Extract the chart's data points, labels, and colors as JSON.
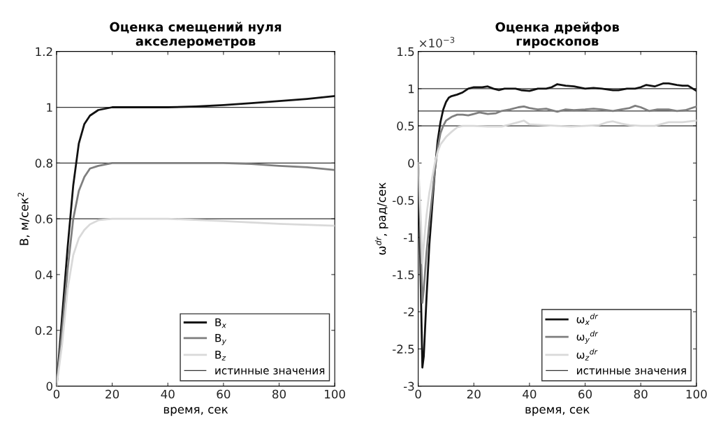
{
  "chart_data": [
    {
      "type": "line",
      "title": "Оценка смещений нуля\nакселерометров",
      "xlabel": "время, сек",
      "ylabel": "B, м/сек$^{2}$",
      "xlim": [
        0,
        100
      ],
      "xticks": [
        0,
        20,
        40,
        60,
        80,
        100
      ],
      "ylim": [
        0,
        1.2
      ],
      "yticks": [
        0,
        0.2,
        0.4,
        0.6,
        0.8,
        1,
        1.2
      ],
      "grid": false,
      "legend": "bottom right",
      "series": [
        {
          "name": "B$_{x}$",
          "color": "#111111",
          "x": [
            0,
            2,
            4,
            6,
            8,
            10,
            12,
            15,
            20,
            30,
            40,
            50,
            60,
            70,
            80,
            90,
            100
          ],
          "values": [
            0.0,
            0.25,
            0.5,
            0.72,
            0.87,
            0.94,
            0.97,
            0.99,
            1.0,
            1.0,
            1.0,
            1.003,
            1.008,
            1.015,
            1.022,
            1.03,
            1.04
          ]
        },
        {
          "name": "B$_{y}$",
          "color": "#7f7f7f",
          "x": [
            0,
            2,
            4,
            6,
            8,
            10,
            12,
            15,
            20,
            40,
            60,
            70,
            80,
            90,
            100
          ],
          "values": [
            0.0,
            0.2,
            0.42,
            0.6,
            0.7,
            0.75,
            0.78,
            0.79,
            0.8,
            0.8,
            0.8,
            0.797,
            0.79,
            0.785,
            0.775
          ]
        },
        {
          "name": "B$_{z}$",
          "color": "#d9d9d9",
          "x": [
            0,
            2,
            4,
            6,
            8,
            10,
            12,
            15,
            20,
            40,
            60,
            80,
            100
          ],
          "values": [
            0.0,
            0.15,
            0.35,
            0.47,
            0.53,
            0.56,
            0.58,
            0.595,
            0.6,
            0.6,
            0.592,
            0.582,
            0.575
          ]
        }
      ],
      "ref_lines": [
        {
          "axis": "y",
          "value": 1,
          "label": "истинные значения",
          "color": "#333333"
        },
        {
          "axis": "y",
          "value": 0.8,
          "color": "#333333"
        },
        {
          "axis": "y",
          "value": 0.6,
          "color": "#333333"
        }
      ]
    },
    {
      "type": "line",
      "title": "Оценка дрейфов\nгироскопов",
      "xlabel": "время, сек",
      "ylabel": "ω$^{dr}$, рад/сек",
      "annotations": [
        "×10$^{−3}$"
      ],
      "xlim": [
        0,
        100
      ],
      "xticks": [
        0,
        20,
        40,
        60,
        80,
        100
      ],
      "ylim": [
        -3,
        1.5
      ],
      "yticks": [
        -3,
        -2.5,
        -2,
        -1.5,
        -1,
        -0.5,
        0,
        0.5,
        1,
        1.5
      ],
      "grid": false,
      "legend": "bottom right",
      "series": [
        {
          "name": "ω$_{x}$$^{dr}$",
          "color": "#111111",
          "x": [
            0,
            1,
            1.5,
            2,
            3,
            4,
            5,
            6,
            7,
            8,
            9,
            10,
            11,
            12,
            14,
            16,
            18,
            20,
            23,
            25,
            27,
            29,
            31,
            33,
            35,
            37,
            40,
            43,
            46,
            48,
            50,
            53,
            56,
            60,
            63,
            66,
            70,
            72,
            75,
            78,
            80,
            82,
            85,
            88,
            90,
            93,
            95,
            97,
            100
          ],
          "values": [
            0,
            -1.8,
            -2.75,
            -2.6,
            -1.8,
            -1.1,
            -0.6,
            -0.1,
            0.3,
            0.55,
            0.72,
            0.82,
            0.88,
            0.9,
            0.92,
            0.95,
            1.0,
            1.02,
            1.02,
            1.03,
            1.0,
            0.98,
            1.0,
            1.0,
            1.0,
            0.98,
            0.97,
            1.0,
            1.0,
            1.02,
            1.06,
            1.04,
            1.03,
            1.0,
            1.01,
            1.0,
            0.98,
            0.98,
            1.0,
            1.0,
            1.02,
            1.05,
            1.03,
            1.07,
            1.07,
            1.05,
            1.04,
            1.04,
            0.97
          ]
        },
        {
          "name": "ω$_{y}$$^{dr}$",
          "color": "#7f7f7f",
          "x": [
            0,
            1,
            1.5,
            2,
            3,
            4,
            5,
            6,
            7,
            8,
            9,
            10,
            12,
            14,
            16,
            18,
            20,
            22,
            25,
            28,
            30,
            33,
            36,
            38,
            40,
            43,
            46,
            50,
            53,
            56,
            60,
            63,
            66,
            70,
            73,
            76,
            78,
            80,
            83,
            86,
            90,
            93,
            96,
            100
          ],
          "values": [
            0,
            -1.2,
            -1.88,
            -1.7,
            -1.2,
            -0.8,
            -0.45,
            -0.1,
            0.2,
            0.4,
            0.5,
            0.57,
            0.62,
            0.65,
            0.65,
            0.64,
            0.66,
            0.68,
            0.66,
            0.67,
            0.7,
            0.72,
            0.75,
            0.76,
            0.74,
            0.72,
            0.73,
            0.69,
            0.72,
            0.71,
            0.72,
            0.73,
            0.72,
            0.7,
            0.72,
            0.74,
            0.77,
            0.75,
            0.7,
            0.72,
            0.72,
            0.7,
            0.71,
            0.76
          ]
        },
        {
          "name": "ω$_{z}$$^{dr}$",
          "color": "#d9d9d9",
          "x": [
            0,
            1,
            1.5,
            2,
            3,
            4,
            5,
            6,
            7,
            8,
            10,
            12,
            14,
            16,
            20,
            25,
            30,
            33,
            36,
            38,
            40,
            45,
            50,
            55,
            60,
            65,
            68,
            70,
            73,
            76,
            80,
            85,
            90,
            95,
            100
          ],
          "values": [
            0,
            -0.8,
            -1.35,
            -1.1,
            -0.7,
            -0.4,
            -0.2,
            0.0,
            0.15,
            0.25,
            0.35,
            0.42,
            0.48,
            0.5,
            0.5,
            0.49,
            0.49,
            0.52,
            0.55,
            0.57,
            0.52,
            0.51,
            0.5,
            0.49,
            0.5,
            0.51,
            0.55,
            0.56,
            0.53,
            0.51,
            0.5,
            0.5,
            0.55,
            0.55,
            0.57
          ]
        }
      ],
      "ref_lines": [
        {
          "axis": "y",
          "value": 1,
          "label": "истинные значения",
          "color": "#333333"
        },
        {
          "axis": "y",
          "value": 0.7,
          "color": "#333333"
        },
        {
          "axis": "y",
          "value": 0.5,
          "color": "#333333"
        }
      ]
    }
  ]
}
